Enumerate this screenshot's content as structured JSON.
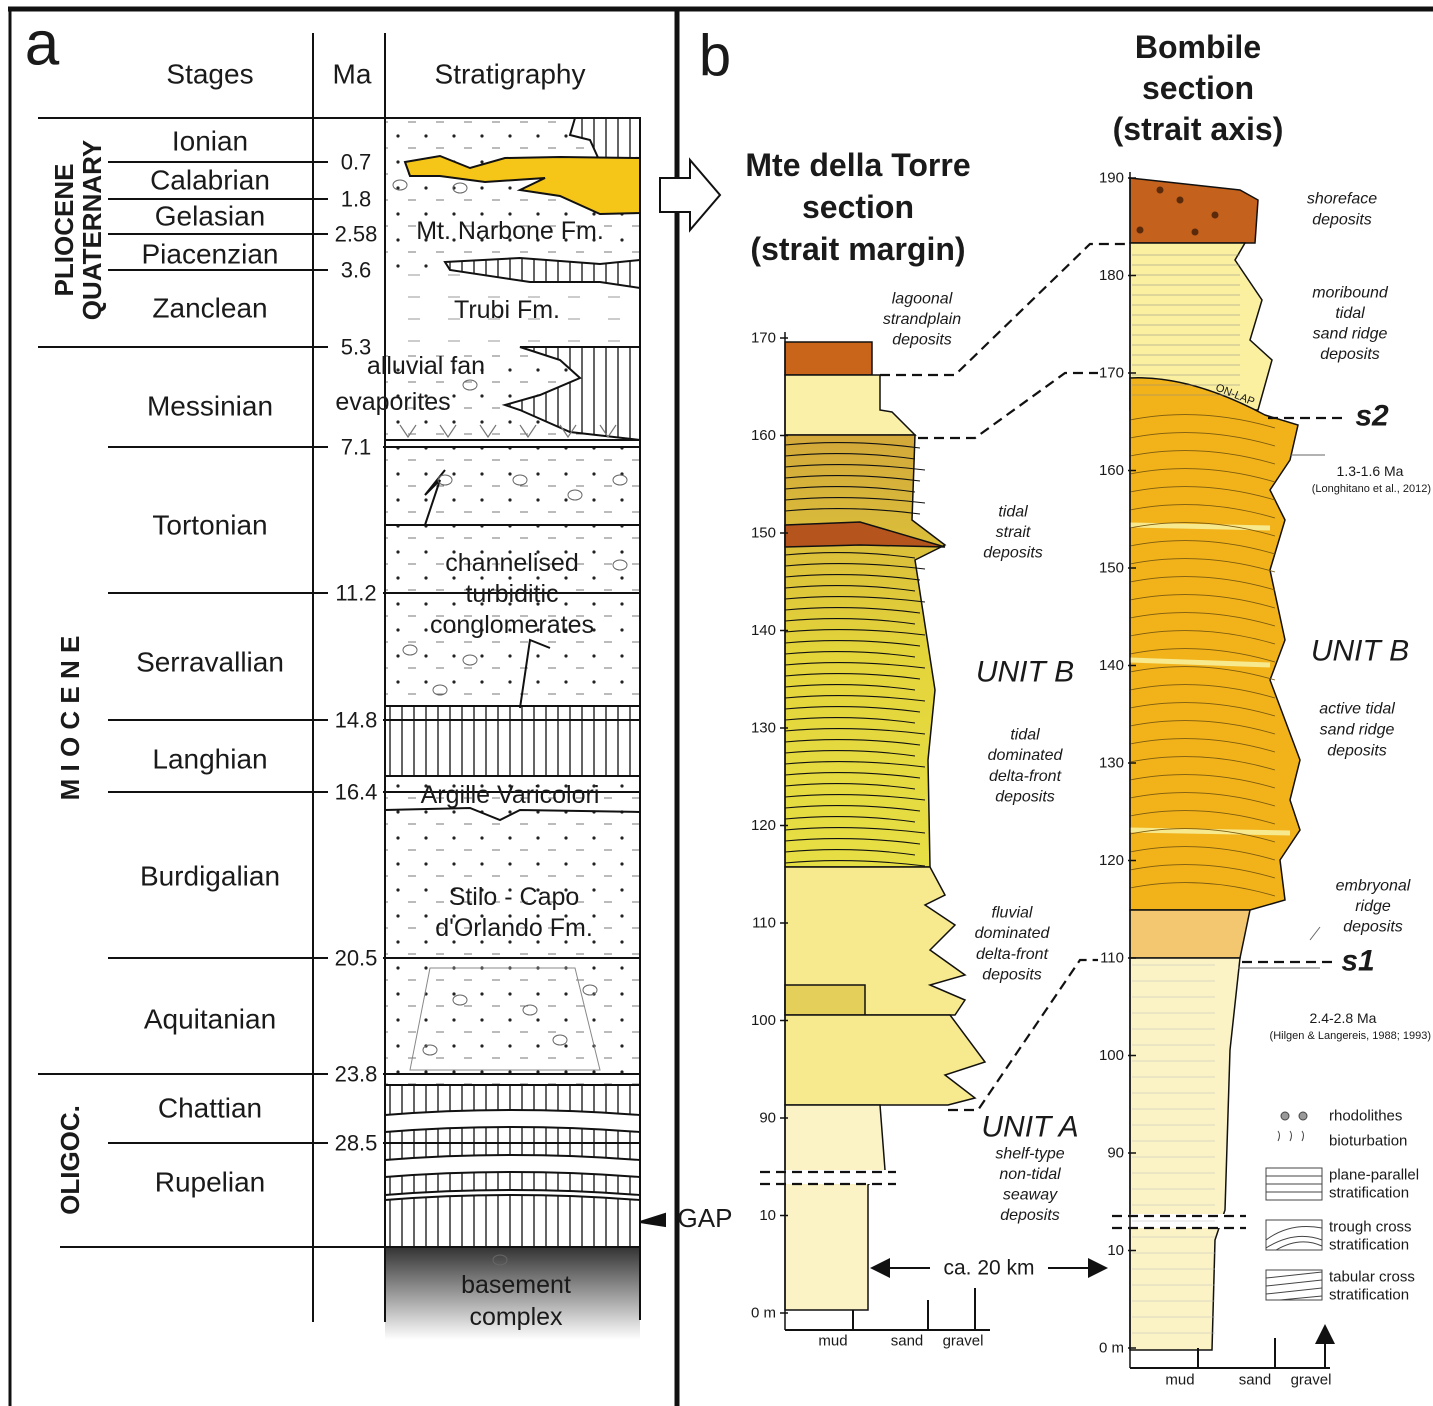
{
  "panel_a": {
    "label": "a",
    "headers": [
      "Stages",
      "Ma",
      "Stratigraphy"
    ],
    "eras": [
      "PLIOCENE",
      "QUATERNARY",
      "M I O C E N E",
      "OLIGOC."
    ],
    "stages": [
      "Ionian",
      "Calabrian",
      "Gelasian",
      "Piacenzian",
      "Zanclean",
      "Messinian",
      "Tortonian",
      "Serravallian",
      "Langhian",
      "Burdigalian",
      "Aquitanian",
      "Chattian",
      "Rupelian"
    ],
    "ages": [
      0.7,
      1.8,
      2.58,
      3.6,
      5.3,
      7.1,
      11.2,
      14.8,
      16.4,
      20.5,
      23.8,
      28.5
    ],
    "formations": [
      [
        "Mt. Narbone Fm."
      ],
      [
        "Trubi Fm."
      ],
      [
        "alluvial fan"
      ],
      [
        "evaporites"
      ],
      [
        "channelised",
        "turbiditic",
        "conglomerates"
      ],
      [
        "Argille Varicolori"
      ],
      [
        "Stilo - Capo",
        "d'Orlando Fm."
      ],
      [
        "GAP"
      ],
      [
        "basement",
        "complex"
      ]
    ]
  },
  "panel_b": {
    "label": "b",
    "distance": "ca. 20 km",
    "margin_section": {
      "title": [
        "Mte della Torre",
        "section",
        "(strait margin)"
      ],
      "yticks": [
        170,
        160,
        150,
        140,
        130,
        120,
        110,
        100,
        90,
        10,
        {
          "value": 0,
          "label": "0 m"
        }
      ],
      "xlabels": [
        "mud",
        "sand",
        "gravel"
      ],
      "annotations": [
        [
          "lagoonal",
          "strandplain",
          "deposits"
        ],
        [
          "tidal",
          "strait",
          "deposits"
        ],
        [
          "UNIT B"
        ],
        [
          "tidal",
          "dominated",
          "delta-front",
          "deposits"
        ],
        [
          "fluvial",
          "dominated",
          "delta-front",
          "deposits"
        ],
        [
          "UNIT A"
        ],
        [
          "shelf-type",
          "non-tidal",
          "seaway",
          "deposits"
        ]
      ]
    },
    "axis_section": {
      "title": [
        "Bombile",
        "section",
        "(strait axis)"
      ],
      "yticks": [
        190,
        180,
        170,
        160,
        150,
        140,
        130,
        120,
        110,
        100,
        90,
        10,
        {
          "value": 0,
          "label": "0 m"
        }
      ],
      "xlabels": [
        "mud",
        "sand",
        "gravel"
      ],
      "annotations": [
        [
          "shoreface",
          "deposits"
        ],
        [
          "moribound",
          "tidal",
          "sand ridge",
          "deposits"
        ],
        [
          "UNIT B"
        ],
        [
          "active tidal",
          "sand ridge",
          "deposits"
        ],
        [
          "embryonal",
          "ridge",
          "deposits"
        ]
      ],
      "surfaces": [
        "ON-LAP",
        "s2",
        "s1"
      ],
      "dates": [
        {
          "age": "1.3-1.6 Ma",
          "ref": "(Longhitano et al., 2012)"
        },
        {
          "age": "2.4-2.8 Ma",
          "ref": "(Hilgen & Langereis, 1988; 1993)"
        }
      ],
      "legend": [
        [
          "rhodolithes"
        ],
        [
          "bioturbation"
        ],
        [
          "plane-parallel",
          "stratification"
        ],
        [
          "trough cross",
          "stratification"
        ],
        [
          "tabular cross",
          "stratification"
        ]
      ]
    }
  }
}
